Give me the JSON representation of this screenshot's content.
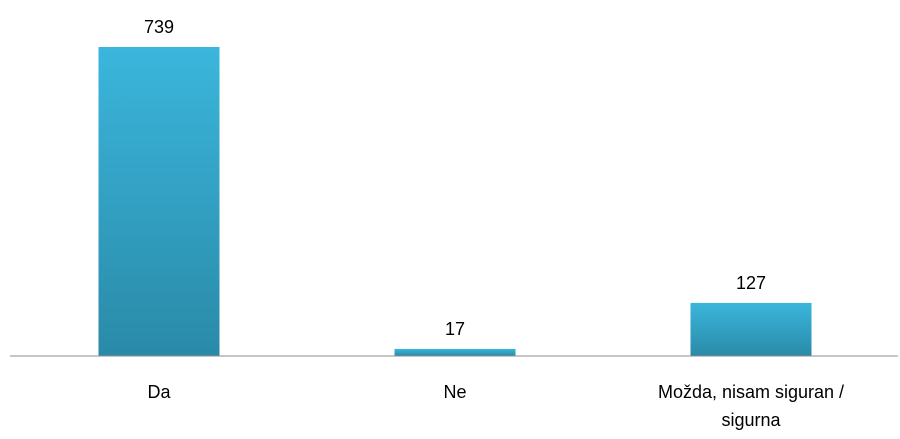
{
  "chart_data": {
    "type": "bar",
    "categories": [
      "Da",
      "Ne",
      "Možda, nisam siguran / sigurna"
    ],
    "category_label_lines": [
      [
        "Da"
      ],
      [
        "Ne"
      ],
      [
        "Možda, nisam siguran /",
        "sigurna"
      ]
    ],
    "values": [
      739,
      17,
      127
    ],
    "data_labels": [
      "739",
      "17",
      "127"
    ],
    "title": "",
    "xlabel": "",
    "ylabel": "",
    "ylim": [
      0,
      739
    ],
    "grid": false,
    "legend": "none",
    "bar_color_top": "#3bb6dc",
    "bar_color_bottom": "#2a8aa8",
    "axis_color": "#8c8c8c"
  }
}
